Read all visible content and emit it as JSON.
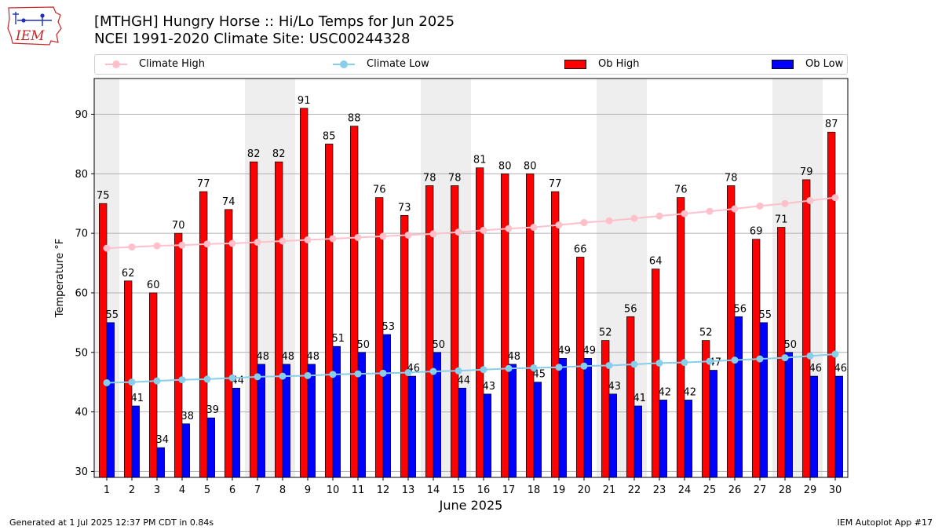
{
  "header": {
    "title_line1": "[MTHGH] Hungry Horse  :: Hi/Lo Temps for Jun 2025",
    "title_line2": "NCEI 1991-2020 Climate Site: USC00244328",
    "logo_text": "IEM"
  },
  "footer": {
    "generated": "Generated at 1 Jul 2025 12:37 PM CDT in 0.84s",
    "app": "IEM Autoplot App #17"
  },
  "colors": {
    "ob_high": "#ff0000",
    "ob_low": "#0000ff",
    "climate_high": "#ffc0cb",
    "climate_low": "#87ceeb",
    "weekend_shade": "#eeeeee",
    "grid": "#b0b0b0"
  },
  "legend": {
    "items": [
      {
        "label": "Climate High",
        "kind": "line",
        "color": "#ffc0cb"
      },
      {
        "label": "Climate Low",
        "kind": "line",
        "color": "#87ceeb"
      },
      {
        "label": "Ob High",
        "kind": "bar",
        "color": "#ff0000"
      },
      {
        "label": "Ob Low",
        "kind": "bar",
        "color": "#0000ff"
      }
    ]
  },
  "chart_data": {
    "type": "bar",
    "xlabel": "June 2025",
    "ylabel": "Temperature °F",
    "ylim": [
      29,
      96
    ],
    "yticks": [
      30,
      40,
      50,
      60,
      70,
      80,
      90
    ],
    "grid": "horizontal",
    "legend_position": "top, above plot",
    "categories": [
      "1",
      "2",
      "3",
      "4",
      "5",
      "6",
      "7",
      "8",
      "9",
      "10",
      "11",
      "12",
      "13",
      "14",
      "15",
      "16",
      "17",
      "18",
      "19",
      "20",
      "21",
      "22",
      "23",
      "24",
      "25",
      "26",
      "27",
      "28",
      "29",
      "30"
    ],
    "shaded_days": [
      1,
      7,
      8,
      14,
      15,
      21,
      22,
      28,
      29
    ],
    "series": [
      {
        "name": "Ob High",
        "kind": "bar",
        "color": "#ff0000",
        "values": [
          75,
          62,
          60,
          70,
          77,
          74,
          82,
          82,
          91,
          85,
          88,
          76,
          73,
          78,
          78,
          81,
          80,
          80,
          77,
          66,
          52,
          56,
          64,
          76,
          52,
          78,
          69,
          71,
          79,
          87
        ]
      },
      {
        "name": "Ob Low",
        "kind": "bar",
        "color": "#0000ff",
        "values": [
          55,
          41,
          34,
          38,
          39,
          44,
          48,
          48,
          48,
          51,
          50,
          53,
          46,
          50,
          44,
          43,
          48,
          45,
          49,
          49,
          43,
          41,
          42,
          42,
          47,
          56,
          55,
          50,
          46,
          46
        ]
      },
      {
        "name": "Climate High",
        "kind": "line",
        "color": "#ffc0cb",
        "values": [
          67.5,
          67.7,
          67.9,
          68.0,
          68.2,
          68.3,
          68.5,
          68.7,
          68.9,
          69.1,
          69.3,
          69.5,
          69.7,
          69.9,
          70.2,
          70.5,
          70.8,
          71.0,
          71.4,
          71.8,
          72.1,
          72.5,
          72.9,
          73.3,
          73.7,
          74.1,
          74.6,
          75.0,
          75.5,
          76.0
        ]
      },
      {
        "name": "Climate Low",
        "kind": "line",
        "color": "#87ceeb",
        "values": [
          44.9,
          45.0,
          45.2,
          45.4,
          45.5,
          45.7,
          45.9,
          46.0,
          46.1,
          46.3,
          46.4,
          46.5,
          46.6,
          46.8,
          46.9,
          47.1,
          47.3,
          47.4,
          47.5,
          47.7,
          47.8,
          48.0,
          48.2,
          48.3,
          48.5,
          48.7,
          48.9,
          49.1,
          49.4,
          49.7
        ]
      }
    ]
  }
}
